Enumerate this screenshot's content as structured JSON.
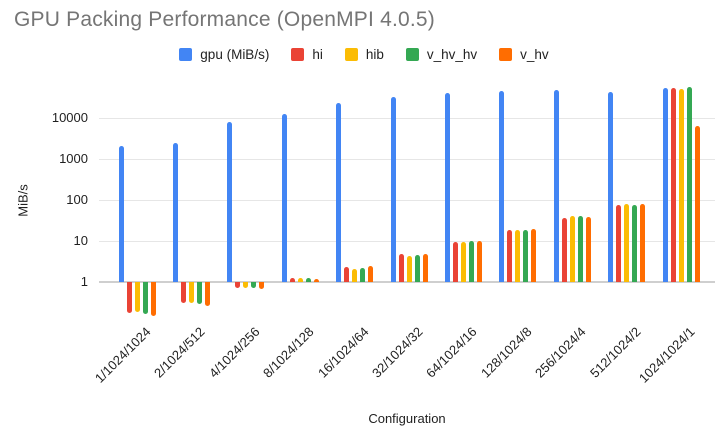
{
  "title": "GPU Packing Performance (OpenMPI 4.0.5)",
  "chart_data": {
    "type": "bar",
    "title": "GPU Packing Performance (OpenMPI 4.0.5)",
    "xlabel": "Configuration",
    "ylabel": "MiB/s",
    "y_scale": "log",
    "yticks": [
      1,
      10,
      100,
      1000,
      10000
    ],
    "ylim": [
      0.15,
      65000
    ],
    "grid": "horizontal",
    "legend_position": "top",
    "categories": [
      "1/1024/1024",
      "2/1024/512",
      "4/1024/256",
      "8/1024/128",
      "16/1024/64",
      "32/1024/32",
      "64/1024/16",
      "128/1024/8",
      "256/1024/4",
      "512/1024/2",
      "1024/1024/1"
    ],
    "series": [
      {
        "name": "gpu (MiB/s)",
        "color": "#4285F4",
        "values": [
          2100,
          2500,
          8000,
          12500,
          23000,
          33000,
          41000,
          45000,
          49000,
          44000,
          53000
        ]
      },
      {
        "name": "hi",
        "color": "#EA4335",
        "values": [
          0.18,
          0.3,
          0.7,
          1.25,
          2.3,
          4.7,
          9.5,
          18.5,
          37,
          75,
          55000
        ]
      },
      {
        "name": "hib",
        "color": "#FBBC04",
        "values": [
          0.19,
          0.3,
          0.73,
          1.25,
          2.1,
          4.4,
          9.5,
          19,
          40,
          78,
          52000
        ]
      },
      {
        "name": "v_hv_hv",
        "color": "#34A853",
        "values": [
          0.17,
          0.29,
          0.7,
          1.25,
          2.2,
          4.6,
          9.8,
          19,
          41,
          74,
          57000
        ]
      },
      {
        "name": "v_hv",
        "color": "#FF6D01",
        "values": [
          0.15,
          0.26,
          0.66,
          1.2,
          2.4,
          4.9,
          10,
          20,
          38.5,
          80,
          6500
        ]
      }
    ]
  }
}
